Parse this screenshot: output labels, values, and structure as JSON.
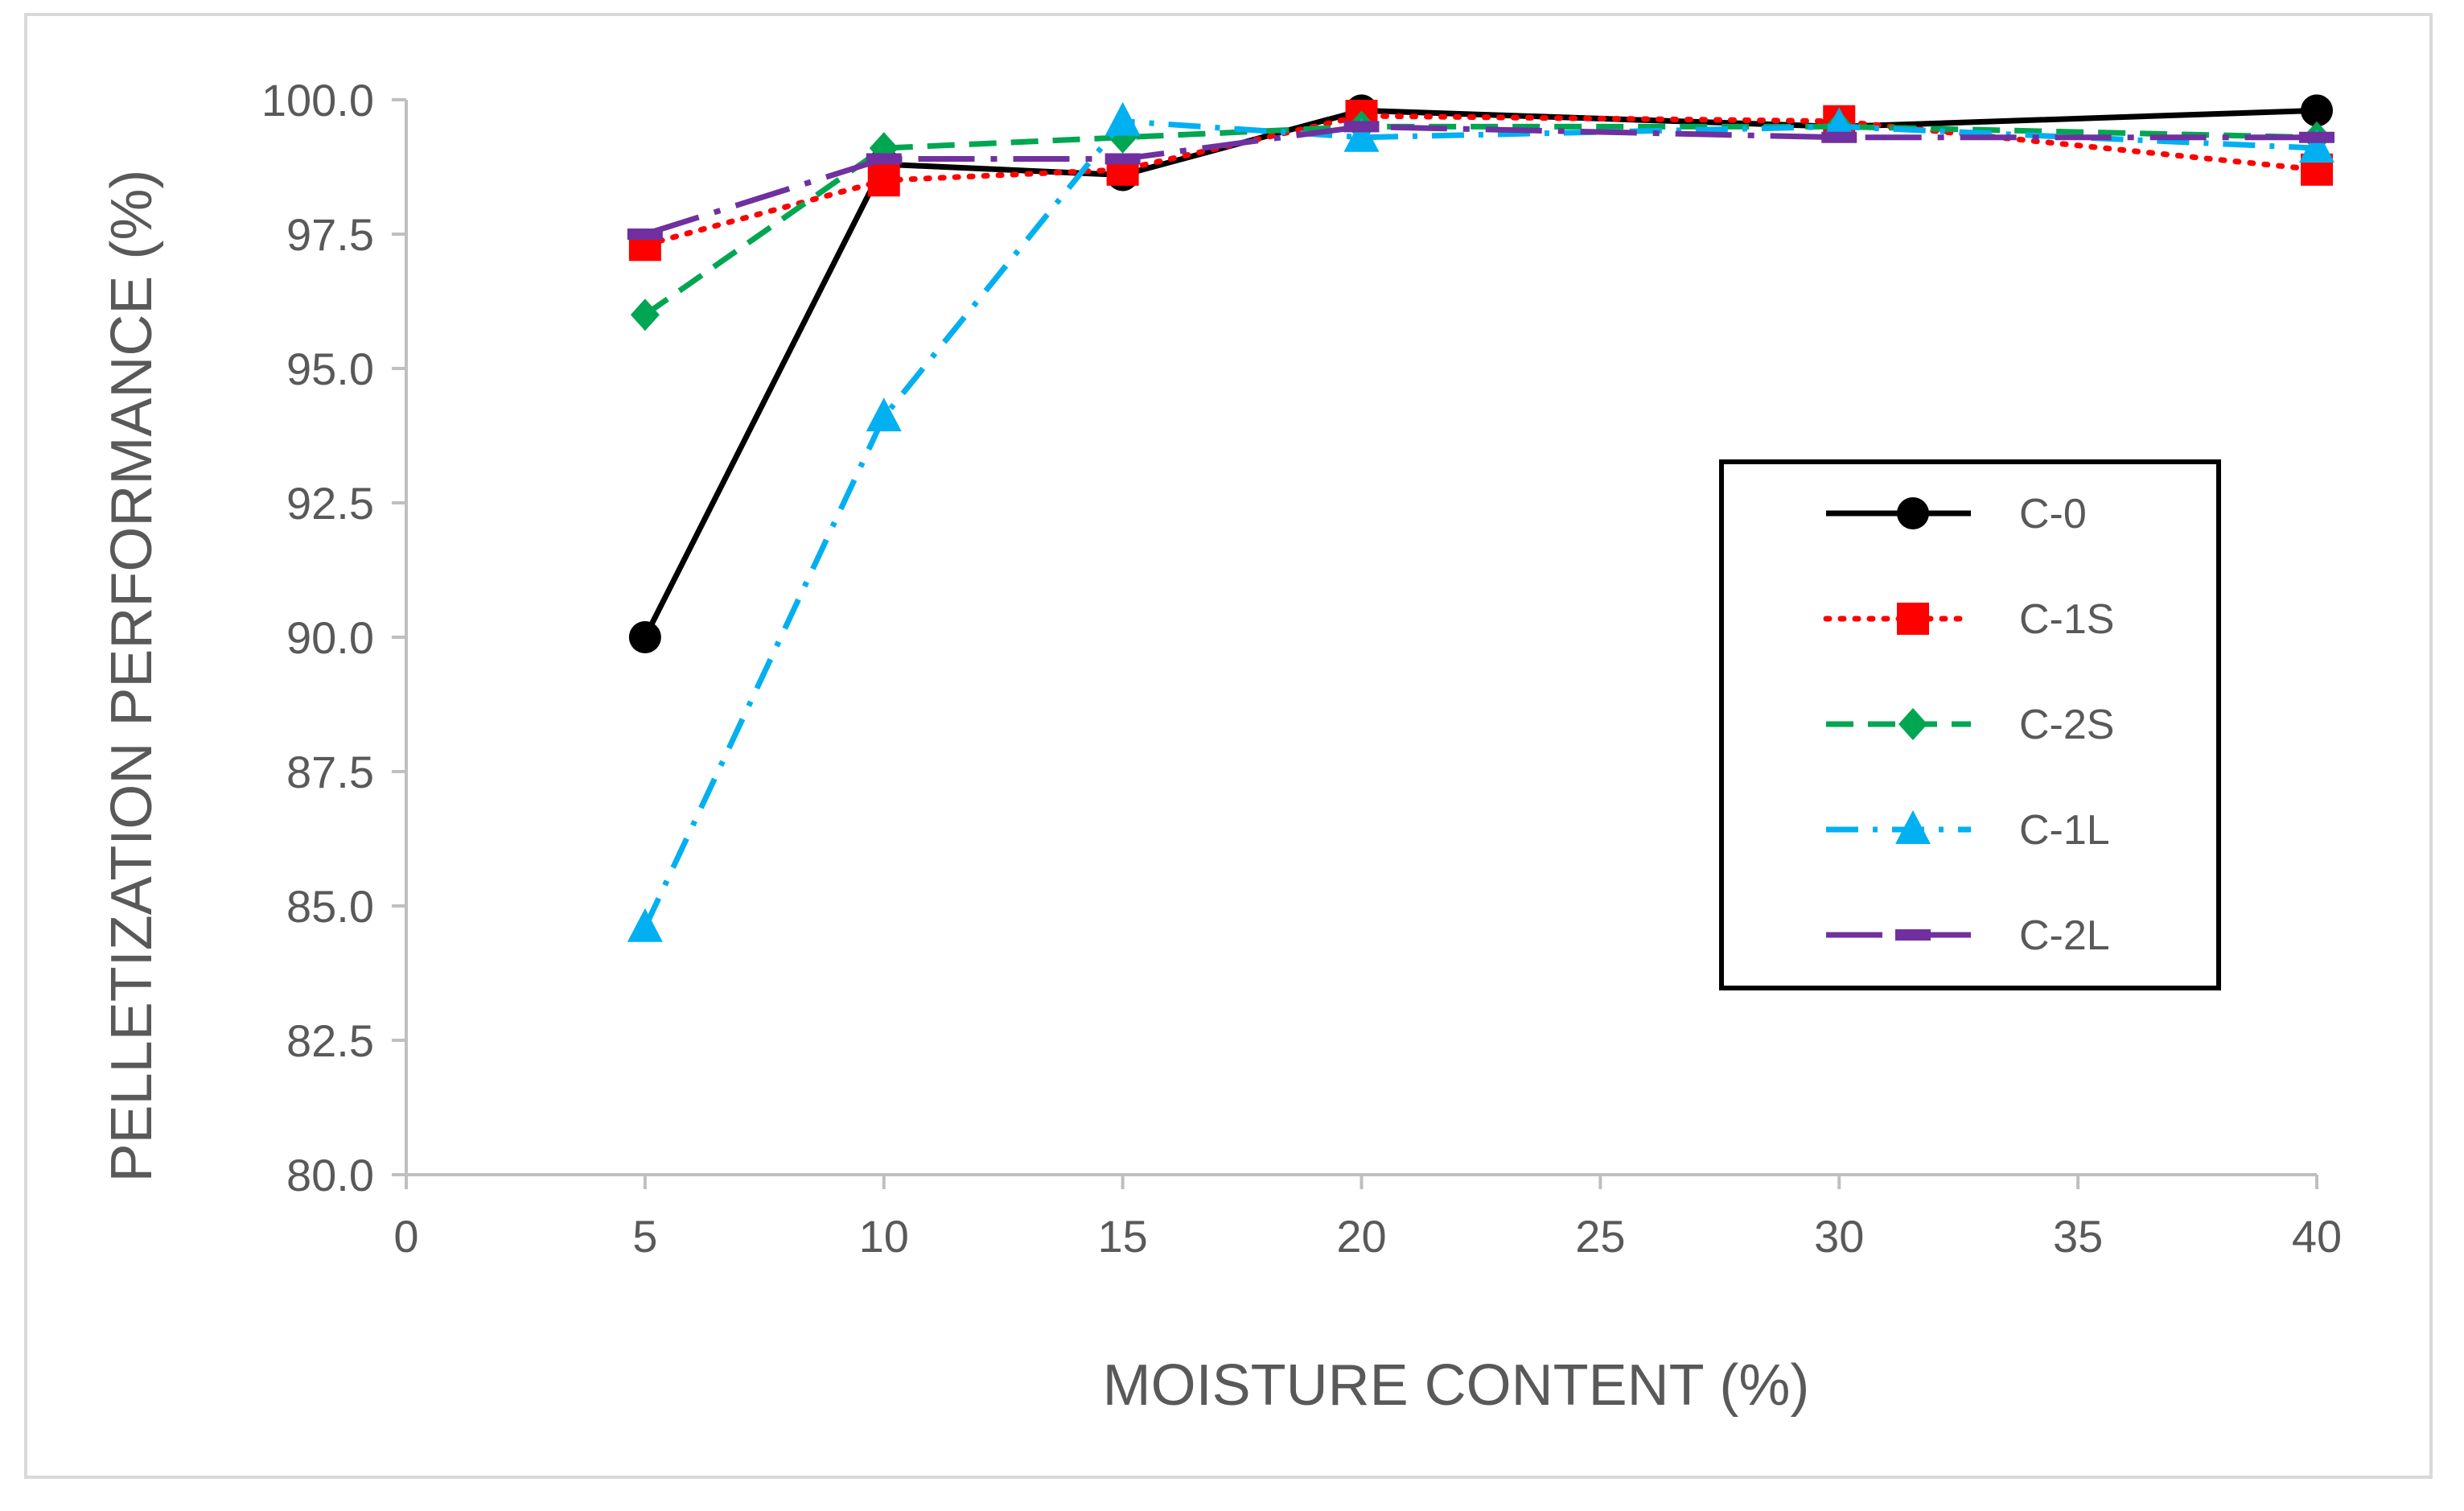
{
  "chart_data": {
    "type": "line",
    "xlabel": "MOISTURE CONTENT (%)",
    "ylabel": "PELLETIZATION PERFORMANCE (%)",
    "xlim": [
      0,
      40
    ],
    "ylim": [
      80,
      100
    ],
    "x_ticks": [
      "0",
      "5",
      "10",
      "15",
      "20",
      "25",
      "30",
      "35",
      "40"
    ],
    "y_ticks": [
      "80.0",
      "82.5",
      "85.0",
      "87.5",
      "90.0",
      "92.5",
      "95.0",
      "97.5",
      "100.0"
    ],
    "grid": false,
    "legend_position": "right",
    "x": [
      5,
      10,
      15,
      20,
      30,
      40
    ],
    "series": [
      {
        "name": "C-0",
        "values": [
          90.0,
          98.8,
          98.6,
          99.8,
          99.5,
          99.8
        ],
        "color": "#000000",
        "dash": "solid",
        "marker": "circle"
      },
      {
        "name": "C-1S",
        "values": [
          97.3,
          98.5,
          98.7,
          99.7,
          99.6,
          98.7
        ],
        "color": "#ff0000",
        "dash": "dotted",
        "marker": "square"
      },
      {
        "name": "C-2S",
        "values": [
          96.0,
          99.1,
          99.3,
          99.5,
          99.5,
          99.3
        ],
        "color": "#00a651",
        "dash": "dashed",
        "marker": "diamond"
      },
      {
        "name": "C-1L",
        "values": [
          84.6,
          94.1,
          99.6,
          99.3,
          99.5,
          99.1
        ],
        "color": "#00b0f0",
        "dash": "dashdot",
        "marker": "triangle"
      },
      {
        "name": "C-2L",
        "values": [
          97.5,
          98.9,
          98.9,
          99.5,
          99.3,
          99.3
        ],
        "color": "#7030a0",
        "dash": "longdashdot",
        "marker": "dash"
      }
    ]
  }
}
